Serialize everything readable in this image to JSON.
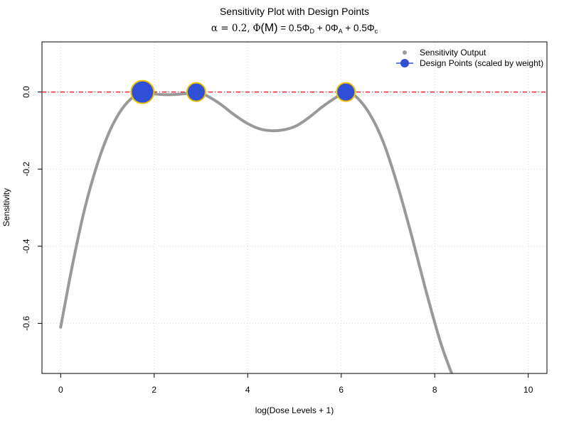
{
  "chart_data": {
    "type": "scatter",
    "title": "Sensitivity Plot with Design Points",
    "subtitle": {
      "alpha": "α = 0.2,",
      "phi_M_prefix": "Φ",
      "phi_M_arg": "(M)",
      "eq": "= 0.5Φ",
      "sub_D": "D",
      "plus1": "+ 0Φ",
      "sub_A": "A",
      "plus2": "+ 0.5Φ",
      "sub_c": "c"
    },
    "xlabel": "log(Dose Levels + 1)",
    "ylabel": "Sensitivity",
    "xlim": [
      -0.4,
      10.4
    ],
    "ylim": [
      -0.73,
      0.13
    ],
    "xticks": [
      0,
      2,
      4,
      6,
      8,
      10
    ],
    "yticks": [
      -0.6,
      -0.4,
      -0.2,
      0.0
    ],
    "xtick_labels": [
      "0",
      "2",
      "4",
      "6",
      "8",
      "10"
    ],
    "ytick_labels": [
      "-0.6",
      "-0.4",
      "-0.2",
      "0.0"
    ],
    "grid": true,
    "legend_position": "top-right",
    "reference_line": {
      "y": 0,
      "color": "#ff0000",
      "style": "dash-dot"
    },
    "series": [
      {
        "name": "Sensitivity Output",
        "kind": "curve",
        "color": "#999999",
        "points": [
          [
            0.0,
            -0.61
          ],
          [
            0.25,
            -0.45
          ],
          [
            0.5,
            -0.31
          ],
          [
            0.75,
            -0.2
          ],
          [
            1.0,
            -0.115
          ],
          [
            1.25,
            -0.055
          ],
          [
            1.5,
            -0.018
          ],
          [
            1.75,
            0.0
          ],
          [
            2.0,
            -0.005
          ],
          [
            2.25,
            -0.007
          ],
          [
            2.5,
            -0.006
          ],
          [
            2.75,
            -0.003
          ],
          [
            2.9,
            0.0
          ],
          [
            3.1,
            -0.008
          ],
          [
            3.4,
            -0.03
          ],
          [
            3.7,
            -0.058
          ],
          [
            4.0,
            -0.082
          ],
          [
            4.3,
            -0.097
          ],
          [
            4.65,
            -0.1
          ],
          [
            5.0,
            -0.09
          ],
          [
            5.3,
            -0.067
          ],
          [
            5.6,
            -0.038
          ],
          [
            5.9,
            -0.013
          ],
          [
            6.1,
            0.0
          ],
          [
            6.3,
            -0.01
          ],
          [
            6.6,
            -0.055
          ],
          [
            6.9,
            -0.13
          ],
          [
            7.2,
            -0.24
          ],
          [
            7.5,
            -0.37
          ],
          [
            7.8,
            -0.51
          ],
          [
            8.1,
            -0.64
          ],
          [
            8.3,
            -0.71
          ],
          [
            8.5,
            -0.77
          ],
          [
            8.7,
            -0.83
          ]
        ]
      },
      {
        "name": "Design Points (scaled by weight)",
        "kind": "points",
        "color": "#2f4fd6",
        "edge_color": "#f0c000",
        "points": [
          {
            "x": 1.75,
            "y": 0.0,
            "weight": 0.5
          },
          {
            "x": 2.9,
            "y": 0.0,
            "weight": 0.25
          },
          {
            "x": 6.1,
            "y": 0.0,
            "weight": 0.25
          }
        ]
      }
    ]
  }
}
